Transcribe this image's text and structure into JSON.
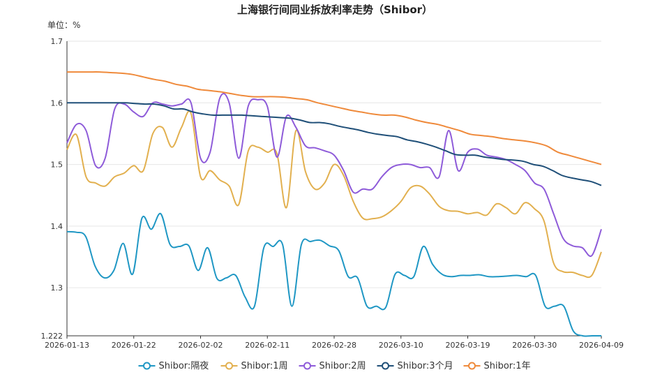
{
  "chart_data": {
    "type": "line",
    "title": "上海银行间同业拆放利率走势（Shibor）",
    "unit_label": "单位：%",
    "ylim": [
      1.222,
      1.7
    ],
    "y_ticks": [
      "1.222",
      "1.3",
      "1.4",
      "1.5",
      "1.6",
      "1.7"
    ],
    "y_tick_values": [
      1.222,
      1.3,
      1.4,
      1.5,
      1.6,
      1.7
    ],
    "x_ticks": [
      {
        "label": "2026-01-13",
        "index": 0
      },
      {
        "label": "2026-01-22",
        "index": 7
      },
      {
        "label": "2026-02-02",
        "index": 14
      },
      {
        "label": "2026-02-11",
        "index": 21
      },
      {
        "label": "2026-02-28",
        "index": 28
      },
      {
        "label": "2026-03-10",
        "index": 35
      },
      {
        "label": "2026-03-19",
        "index": 42
      },
      {
        "label": "2026-03-30",
        "index": 49
      },
      {
        "label": "2026-04-09",
        "index": 56
      }
    ],
    "legend_position": "bottom",
    "grid": true,
    "series": [
      {
        "name": "Shibor:隔夜",
        "color": "#1f97c4",
        "values": [
          1.391,
          1.39,
          1.383,
          1.335,
          1.316,
          1.328,
          1.372,
          1.322,
          1.413,
          1.395,
          1.42,
          1.37,
          1.367,
          1.368,
          1.328,
          1.365,
          1.315,
          1.316,
          1.32,
          1.285,
          1.27,
          1.365,
          1.367,
          1.37,
          1.27,
          1.37,
          1.375,
          1.377,
          1.368,
          1.36,
          1.318,
          1.316,
          1.27,
          1.27,
          1.268,
          1.322,
          1.32,
          1.318,
          1.367,
          1.338,
          1.322,
          1.318,
          1.32,
          1.32,
          1.321,
          1.318,
          1.318,
          1.319,
          1.32,
          1.318,
          1.32,
          1.27,
          1.27,
          1.27,
          1.23,
          1.222,
          1.222,
          1.222
        ]
      },
      {
        "name": "Shibor:1周",
        "color": "#e2b04f",
        "values": [
          1.524,
          1.548,
          1.48,
          1.47,
          1.465,
          1.48,
          1.486,
          1.498,
          1.49,
          1.55,
          1.56,
          1.528,
          1.56,
          1.583,
          1.48,
          1.49,
          1.475,
          1.465,
          1.435,
          1.522,
          1.528,
          1.52,
          1.518,
          1.43,
          1.555,
          1.488,
          1.46,
          1.47,
          1.5,
          1.482,
          1.44,
          1.413,
          1.412,
          1.415,
          1.425,
          1.44,
          1.462,
          1.465,
          1.452,
          1.432,
          1.425,
          1.424,
          1.42,
          1.422,
          1.418,
          1.436,
          1.43,
          1.42,
          1.438,
          1.428,
          1.408,
          1.34,
          1.326,
          1.325,
          1.32,
          1.32,
          1.358
        ]
      },
      {
        "name": "Shibor:2周",
        "color": "#8e5bd9",
        "values": [
          1.535,
          1.565,
          1.555,
          1.498,
          1.51,
          1.59,
          1.598,
          1.585,
          1.578,
          1.6,
          1.598,
          1.595,
          1.598,
          1.6,
          1.51,
          1.52,
          1.607,
          1.6,
          1.51,
          1.595,
          1.605,
          1.594,
          1.512,
          1.578,
          1.56,
          1.53,
          1.527,
          1.522,
          1.515,
          1.49,
          1.455,
          1.46,
          1.46,
          1.48,
          1.495,
          1.5,
          1.5,
          1.495,
          1.495,
          1.48,
          1.555,
          1.49,
          1.52,
          1.525,
          1.515,
          1.512,
          1.508,
          1.5,
          1.49,
          1.47,
          1.46,
          1.42,
          1.38,
          1.368,
          1.365,
          1.352,
          1.395
        ]
      },
      {
        "name": "Shibor:3个月",
        "color": "#1f4f78",
        "values": [
          1.6,
          1.6,
          1.6,
          1.6,
          1.6,
          1.6,
          1.6,
          1.599,
          1.598,
          1.598,
          1.595,
          1.59,
          1.59,
          1.585,
          1.582,
          1.58,
          1.58,
          1.58,
          1.58,
          1.579,
          1.578,
          1.577,
          1.576,
          1.575,
          1.572,
          1.568,
          1.568,
          1.566,
          1.562,
          1.559,
          1.556,
          1.552,
          1.549,
          1.547,
          1.545,
          1.54,
          1.537,
          1.533,
          1.528,
          1.522,
          1.516,
          1.515,
          1.515,
          1.512,
          1.51,
          1.508,
          1.507,
          1.505,
          1.5,
          1.497,
          1.49,
          1.482,
          1.478,
          1.475,
          1.472,
          1.466
        ]
      },
      {
        "name": "Shibor:1年",
        "color": "#ef8a3b",
        "values": [
          1.65,
          1.65,
          1.65,
          1.65,
          1.649,
          1.648,
          1.646,
          1.642,
          1.638,
          1.635,
          1.63,
          1.627,
          1.622,
          1.62,
          1.618,
          1.615,
          1.612,
          1.61,
          1.61,
          1.61,
          1.609,
          1.607,
          1.605,
          1.6,
          1.596,
          1.592,
          1.588,
          1.585,
          1.582,
          1.58,
          1.58,
          1.577,
          1.572,
          1.568,
          1.565,
          1.56,
          1.555,
          1.549,
          1.547,
          1.545,
          1.542,
          1.54,
          1.538,
          1.535,
          1.53,
          1.52,
          1.515,
          1.51,
          1.505,
          1.5
        ]
      }
    ]
  }
}
